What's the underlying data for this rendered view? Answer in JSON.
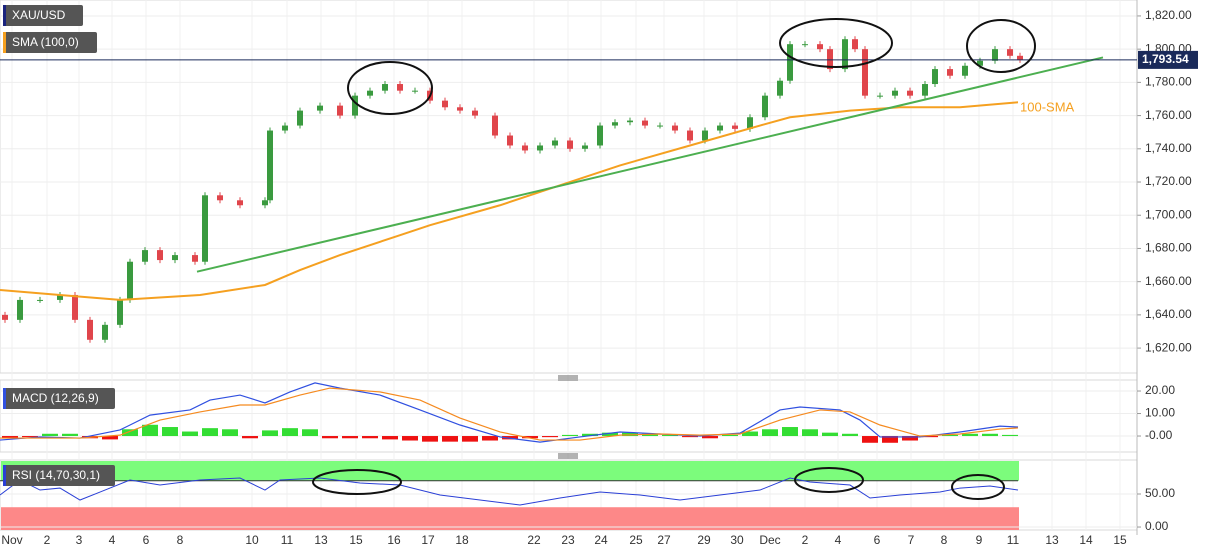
{
  "chart_data": [
    {
      "type": "candlestick",
      "title": "XAU/USD",
      "indicator": "SMA (100,0)",
      "up_color": "#3a9a3f",
      "down_color": "#e0454b",
      "x": [
        0.5,
        2,
        4,
        6,
        7.5,
        9,
        10.5,
        12,
        13,
        14.5,
        16,
        17.5,
        19.5,
        20.5,
        22,
        24,
        26.5,
        27,
        28.5,
        30,
        32,
        34,
        35.5,
        37,
        38.5,
        40,
        41.5,
        43,
        44.5,
        46,
        47.5,
        49.5,
        51,
        52.5,
        54,
        55.5,
        57,
        58.5,
        60,
        61.5,
        63,
        64.5,
        66,
        67.5,
        69,
        70.5,
        72,
        73.5,
        75,
        76.5,
        78,
        79,
        80.5,
        82,
        83,
        84.5,
        85.5,
        86.5,
        88,
        89.5,
        91,
        92.5,
        93.5,
        95,
        96.5,
        98,
        99.5,
        101,
        102
      ],
      "open": [
        1640,
        1637,
        1649,
        1649,
        1652,
        1637,
        1625,
        1634,
        1649,
        1672,
        1679,
        1673,
        1676,
        1672,
        1712,
        1709,
        1706,
        1709,
        1751,
        1754,
        1763,
        1766,
        1760,
        1772,
        1775,
        1779,
        1775,
        1775,
        1769,
        1765,
        1763,
        1760,
        1748,
        1742,
        1739,
        1742,
        1745,
        1740,
        1742,
        1754,
        1756,
        1757,
        1754,
        1754,
        1751,
        1745,
        1751,
        1754,
        1752,
        1759,
        1772,
        1781,
        1803,
        1803,
        1800,
        1788,
        1806,
        1800,
        1772,
        1772,
        1775,
        1772,
        1779,
        1788,
        1784,
        1790,
        1793,
        1800,
        1796
      ],
      "close": [
        1637,
        1649,
        1649,
        1652,
        1637,
        1625,
        1634,
        1649,
        1672,
        1679,
        1673,
        1676,
        1672,
        1712,
        1709,
        1706,
        1709,
        1751,
        1754,
        1763,
        1766,
        1760,
        1772,
        1775,
        1779,
        1775,
        1775,
        1769,
        1765,
        1763,
        1760,
        1748,
        1742,
        1739,
        1742,
        1745,
        1740,
        1742,
        1754,
        1756,
        1757,
        1754,
        1754,
        1751,
        1745,
        1751,
        1754,
        1752,
        1759,
        1772,
        1781,
        1803,
        1803,
        1800,
        1788,
        1806,
        1800,
        1772,
        1772,
        1775,
        1772,
        1779,
        1788,
        1784,
        1790,
        1793,
        1800,
        1796,
        1793.54
      ],
      "sma": {
        "color": "#f5a020",
        "x": [
          0,
          6,
          12,
          20,
          26.5,
          30,
          34,
          40,
          43,
          50,
          56,
          62,
          69,
          76,
          79,
          85,
          90,
          96,
          101.8
        ],
        "values": [
          1655,
          1652,
          1649,
          1652,
          1658,
          1667,
          1676,
          1688,
          1694,
          1706,
          1718,
          1730,
          1742,
          1754,
          1759,
          1763,
          1765,
          1765,
          1768
        ]
      },
      "trendline": {
        "color": "#4caf50",
        "x": [
          19.7,
          110.3
        ],
        "values": [
          1666,
          1795
        ]
      },
      "annotation": "100-SMA",
      "last_price": {
        "value": 1793.54,
        "label": "1,793.54"
      },
      "xlim": [
        0,
        113.7
      ],
      "ylim": [
        1605,
        1829.6
      ],
      "yticks": [
        {
          "value": 1620,
          "label": "1,620.00"
        },
        {
          "value": 1640,
          "label": "1,640.00"
        },
        {
          "value": 1660,
          "label": "1,660.00"
        },
        {
          "value": 1680,
          "label": "1,680.00"
        },
        {
          "value": 1700,
          "label": "1,700.00"
        },
        {
          "value": 1720,
          "label": "1,720.00"
        },
        {
          "value": 1740,
          "label": "1,740.00"
        },
        {
          "value": 1760,
          "label": "1,760.00"
        },
        {
          "value": 1780,
          "label": "1,780.00"
        },
        {
          "value": 1800,
          "label": "1,800.00"
        },
        {
          "value": 1820,
          "label": "1,820.00"
        }
      ],
      "xticks": [
        {
          "value": 1.2,
          "label": "Nov"
        },
        {
          "value": 4.7,
          "label": "2"
        },
        {
          "value": 7.9,
          "label": "3"
        },
        {
          "value": 11.2,
          "label": "4"
        },
        {
          "value": 14.6,
          "label": "6"
        },
        {
          "value": 18,
          "label": "8"
        },
        {
          "value": 25.2,
          "label": "10"
        },
        {
          "value": 28.7,
          "label": "11"
        },
        {
          "value": 32.1,
          "label": "13"
        },
        {
          "value": 35.6,
          "label": "15"
        },
        {
          "value": 39.4,
          "label": "16"
        },
        {
          "value": 42.8,
          "label": "17"
        },
        {
          "value": 46.2,
          "label": "18"
        },
        {
          "value": 53.4,
          "label": "22"
        },
        {
          "value": 56.8,
          "label": "23"
        },
        {
          "value": 60.1,
          "label": "24"
        },
        {
          "value": 63.6,
          "label": "25"
        },
        {
          "value": 66.4,
          "label": "27"
        },
        {
          "value": 70.4,
          "label": "29"
        },
        {
          "value": 73.7,
          "label": "30"
        },
        {
          "value": 77,
          "label": "Dec"
        },
        {
          "value": 80.5,
          "label": "2"
        },
        {
          "value": 83.8,
          "label": "4"
        },
        {
          "value": 87.7,
          "label": "6"
        },
        {
          "value": 91.1,
          "label": "7"
        },
        {
          "value": 94.4,
          "label": "8"
        },
        {
          "value": 97.9,
          "label": "9"
        },
        {
          "value": 101.3,
          "label": "11"
        },
        {
          "value": 105.2,
          "label": "13"
        },
        {
          "value": 108.6,
          "label": "14"
        },
        {
          "value": 112,
          "label": "15"
        }
      ],
      "grid": true
    },
    {
      "type": "macd",
      "title": "MACD (12,26,9)",
      "lines": [
        {
          "color": "#3050e0",
          "x": [
            0,
            4,
            8,
            12,
            15,
            19,
            21,
            24,
            26.5,
            29,
            31.5,
            34,
            38,
            42,
            46,
            50,
            54,
            58,
            62,
            66,
            70,
            74,
            78,
            80,
            84,
            86,
            88,
            92,
            96,
            100,
            101.8
          ],
          "values": [
            -1.8,
            -0.4,
            -0.9,
            2.7,
            9.3,
            11.6,
            16,
            18.2,
            14.7,
            19.6,
            23.6,
            21.3,
            18.2,
            11.6,
            4.9,
            -0.4,
            -2.7,
            -0.4,
            1.8,
            0.9,
            0,
            1.3,
            11.6,
            12.9,
            11.6,
            7.1,
            -0.4,
            -0.4,
            1.8,
            4.4,
            4
          ]
        },
        {
          "color": "#f58a1f",
          "x": [
            0,
            8,
            12,
            16,
            20,
            24,
            26.5,
            30,
            33,
            38,
            42,
            46,
            50,
            54,
            58,
            62,
            66,
            70,
            74,
            78,
            82,
            85,
            88,
            92,
            96,
            100,
            101.8
          ],
          "values": [
            -0.9,
            -0.9,
            0.4,
            7.1,
            10.7,
            13.8,
            13.8,
            18.2,
            21.3,
            19.6,
            16,
            8,
            1.8,
            -1.8,
            -1.8,
            0.4,
            0.9,
            0.4,
            0.9,
            7.1,
            11.6,
            10.7,
            4.9,
            0,
            0.9,
            3.1,
            3.6
          ]
        }
      ],
      "histogram": {
        "up_color": "#33dd33",
        "down_color": "#ee1111",
        "x": [
          1,
          3,
          5,
          7,
          9,
          11,
          13,
          15,
          17,
          19,
          21,
          23,
          25,
          27,
          29,
          31,
          33,
          35,
          37,
          39,
          41,
          43,
          45,
          47,
          49,
          51,
          53,
          55,
          57,
          59,
          61,
          63,
          65,
          67,
          69,
          71,
          73,
          75,
          77,
          79,
          81,
          83,
          85,
          87,
          89,
          91,
          93,
          95,
          97,
          99,
          101
        ],
        "values": [
          -1,
          -0.5,
          1,
          1,
          -1,
          -1.5,
          3,
          5,
          4,
          2,
          3.5,
          3,
          -1,
          2.5,
          3.5,
          3,
          -1,
          -1,
          -1,
          -1.5,
          -2,
          -2.5,
          -2.5,
          -2.5,
          -2,
          -1.5,
          -1,
          -0.5,
          0.5,
          1,
          1.5,
          1.5,
          1,
          0.5,
          -0.5,
          -1,
          0.5,
          2,
          3,
          4,
          3,
          1.5,
          1,
          -3,
          -3,
          -2,
          -0.5,
          0.5,
          1,
          1,
          0.5
        ]
      },
      "ylim": [
        -7.1,
        24.9
      ],
      "yticks": [
        {
          "value": 0,
          "label": "-0.00"
        },
        {
          "value": 10,
          "label": "10.00"
        },
        {
          "value": 20,
          "label": "20.00"
        }
      ]
    },
    {
      "type": "rsi",
      "title": "RSI (14,70,30,1)",
      "bands": {
        "upper": 70,
        "lower": 30,
        "upper_color": "#7cfc7c",
        "lower_color": "#fd8888"
      },
      "line": {
        "color": "#2a3fd6",
        "x": [
          0,
          2,
          4,
          6,
          8,
          10,
          13,
          16,
          20,
          24,
          26.5,
          28,
          32,
          36,
          40,
          44,
          48,
          52,
          56,
          60,
          64,
          68,
          72,
          76,
          79,
          81,
          85,
          87,
          90,
          94,
          96,
          99,
          101.8
        ],
        "values": [
          48.5,
          71.2,
          56,
          59,
          40.9,
          53,
          71.2,
          63.6,
          71.2,
          74.2,
          56,
          71.2,
          74.2,
          66.7,
          63.6,
          48.5,
          40.9,
          33.3,
          43.9,
          53,
          48.5,
          40.9,
          48.5,
          56,
          74.2,
          68.2,
          63.6,
          43.9,
          48.5,
          53,
          59,
          62.1,
          56
        ]
      },
      "ylim": [
        -4.5,
        101.5
      ],
      "yticks": [
        {
          "value": 0,
          "label": "0.00"
        },
        {
          "value": 50,
          "label": "50.00"
        }
      ]
    }
  ]
}
